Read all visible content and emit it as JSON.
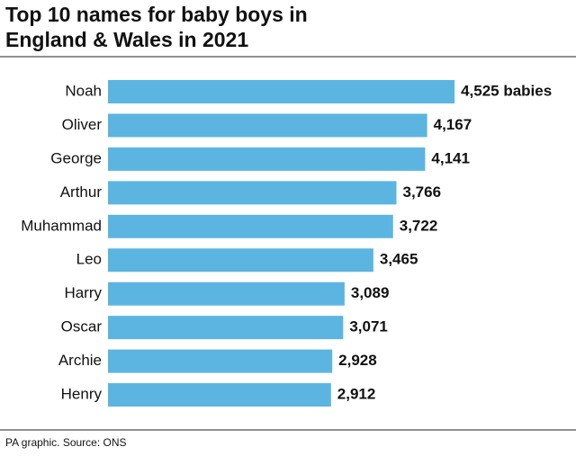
{
  "chart_data": {
    "type": "bar",
    "orientation": "horizontal",
    "title": [
      "Top 10 names for baby boys in",
      "England & Wales in 2021"
    ],
    "categories": [
      "Noah",
      "Oliver",
      "George",
      "Arthur",
      "Muhammad",
      "Leo",
      "Harry",
      "Oscar",
      "Archie",
      "Henry"
    ],
    "values": [
      4525,
      4167,
      4141,
      3766,
      3722,
      3465,
      3089,
      3071,
      2928,
      2912
    ],
    "value_labels": [
      "4,525 babies",
      "4,167",
      "4,141",
      "3,766",
      "3,722",
      "3,465",
      "3,089",
      "3,071",
      "2,928",
      "2,912"
    ],
    "color": "#5bb5e0",
    "source": "PA graphic. Source: ONS"
  }
}
